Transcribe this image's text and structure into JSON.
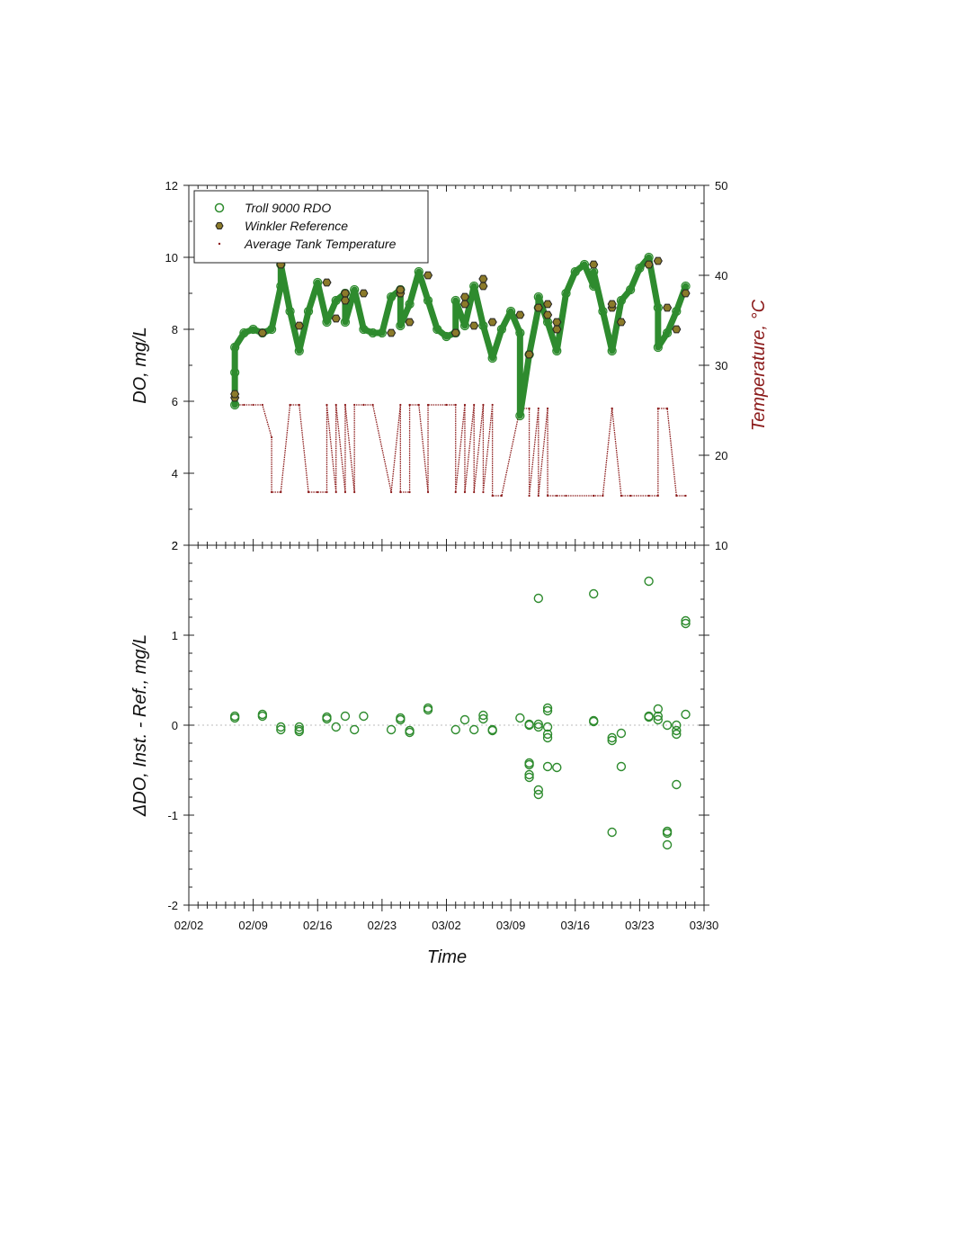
{
  "chart_data": [
    {
      "type": "line",
      "panel": "top",
      "ylabel": "DO, mg/L",
      "y2label": "Temperature, °C",
      "ylim": [
        2,
        12
      ],
      "y2lim": [
        10,
        50
      ],
      "xlim": [
        "02/02",
        "03/30"
      ],
      "yticks": [
        "2",
        "4",
        "6",
        "8",
        "10",
        "12"
      ],
      "y2ticks": [
        "10",
        "20",
        "30",
        "40",
        "50"
      ],
      "legend": {
        "placement": "top-left",
        "entries": [
          "Troll 9000 RDO",
          "Winkler Reference",
          "Average Tank Temperature"
        ]
      },
      "colors": {
        "troll": "#2e8b2e",
        "winkler": "#8b7a2a",
        "temperature": "#8b1a1a",
        "y2_axis_label": "#8b1a1a"
      },
      "series": [
        {
          "name": "Troll 9000 RDO",
          "style": "open circles",
          "x": [
            "02/07",
            "02/07",
            "02/07",
            "02/08",
            "02/09",
            "02/10",
            "02/11",
            "02/12",
            "02/12",
            "02/13",
            "02/14",
            "02/15",
            "02/16",
            "02/17",
            "02/18",
            "02/19",
            "02/19",
            "02/20",
            "02/21",
            "02/22",
            "02/23",
            "02/24",
            "02/25",
            "02/25",
            "02/26",
            "02/27",
            "02/28",
            "03/01",
            "03/02",
            "03/03",
            "03/03",
            "03/04",
            "03/05",
            "03/06",
            "03/07",
            "03/08",
            "03/09",
            "03/10",
            "03/10",
            "03/11",
            "03/12",
            "03/12",
            "03/13",
            "03/14",
            "03/15",
            "03/16",
            "03/17",
            "03/18",
            "03/18",
            "03/19",
            "03/20",
            "03/21",
            "03/22",
            "03/23",
            "03/24",
            "03/25",
            "03/25",
            "03/26",
            "03/27",
            "03/28"
          ],
          "y": [
            5.9,
            6.8,
            7.5,
            7.9,
            8.0,
            7.9,
            8.0,
            9.2,
            9.8,
            8.5,
            7.4,
            8.5,
            9.3,
            8.2,
            8.8,
            9.0,
            8.2,
            9.1,
            8.0,
            7.9,
            7.9,
            8.9,
            9.1,
            8.1,
            8.7,
            9.6,
            8.8,
            8.0,
            7.8,
            7.9,
            8.8,
            8.1,
            9.2,
            8.1,
            7.2,
            8.0,
            8.5,
            7.9,
            5.6,
            7.3,
            8.6,
            8.9,
            8.2,
            7.4,
            9.0,
            9.6,
            9.8,
            9.2,
            9.6,
            8.5,
            7.4,
            8.8,
            9.1,
            9.7,
            10.0,
            8.6,
            7.5,
            7.9,
            8.5,
            9.2
          ]
        },
        {
          "name": "Winkler Reference",
          "style": "filled hexagons",
          "x": [
            "02/07",
            "02/07",
            "02/10",
            "02/12",
            "02/14",
            "02/17",
            "02/18",
            "02/19",
            "02/19",
            "02/21",
            "02/24",
            "02/25",
            "02/25",
            "02/26",
            "02/28",
            "03/03",
            "03/04",
            "03/04",
            "03/05",
            "03/06",
            "03/06",
            "03/07",
            "03/10",
            "03/11",
            "03/12",
            "03/13",
            "03/13",
            "03/14",
            "03/14",
            "03/18",
            "03/20",
            "03/20",
            "03/21",
            "03/24",
            "03/25",
            "03/26",
            "03/27",
            "03/28"
          ],
          "y": [
            6.1,
            6.2,
            7.9,
            9.8,
            8.1,
            9.3,
            8.3,
            8.8,
            9.0,
            9.0,
            7.9,
            9.0,
            9.1,
            8.2,
            9.5,
            7.9,
            8.7,
            8.9,
            8.1,
            9.2,
            9.4,
            8.2,
            8.4,
            7.3,
            8.6,
            8.7,
            8.4,
            8.2,
            8.0,
            9.8,
            8.6,
            8.7,
            8.2,
            9.8,
            9.9,
            8.6,
            8.0,
            9.0
          ]
        },
        {
          "name": "Average Tank Temperature",
          "axis": "right",
          "style": "small dots",
          "x": [
            "02/07",
            "02/08",
            "02/09",
            "02/10",
            "02/11",
            "02/11",
            "02/12",
            "02/13",
            "02/14",
            "02/15",
            "02/16",
            "02/17",
            "02/17",
            "02/18",
            "02/18",
            "02/19",
            "02/19",
            "02/20",
            "02/20",
            "02/21",
            "02/21",
            "02/22",
            "02/24",
            "02/25",
            "02/25",
            "02/26",
            "02/26",
            "02/27",
            "02/28",
            "02/28",
            "03/02",
            "03/03",
            "03/03",
            "03/04",
            "03/04",
            "03/05",
            "03/05",
            "03/06",
            "03/06",
            "03/07",
            "03/07",
            "03/08",
            "03/10",
            "03/10",
            "03/11",
            "03/11",
            "03/12",
            "03/12",
            "03/13",
            "03/13",
            "03/14",
            "03/15",
            "03/18",
            "03/18",
            "03/19",
            "03/20",
            "03/20",
            "03/21",
            "03/21",
            "03/22",
            "03/24",
            "03/25",
            "03/25",
            "03/26",
            "03/27",
            "03/28"
          ],
          "y": [
            25.6,
            25.6,
            25.6,
            25.6,
            22,
            15.9,
            15.9,
            25.6,
            25.6,
            15.9,
            15.9,
            15.9,
            25.6,
            15.9,
            25.6,
            15.9,
            25.6,
            15.9,
            25.6,
            25.6,
            25.6,
            25.6,
            15.9,
            25.6,
            15.9,
            15.9,
            25.6,
            25.6,
            15.9,
            25.6,
            25.6,
            25.6,
            15.9,
            25.6,
            15.9,
            25.6,
            15.9,
            25.6,
            15.9,
            25.6,
            15.5,
            15.5,
            25.2,
            25.2,
            25.2,
            15.5,
            25.2,
            15.5,
            25.2,
            15.5,
            15.5,
            15.5,
            15.5,
            15.5,
            15.5,
            25.2,
            25.2,
            15.5,
            15.5,
            15.5,
            15.5,
            15.5,
            25.2,
            25.2,
            15.5,
            15.5
          ]
        }
      ]
    },
    {
      "type": "scatter",
      "panel": "bottom",
      "xlabel": "Time",
      "ylabel": "ΔDO, Inst. - Ref., mg/L",
      "ylim": [
        -2,
        2
      ],
      "xlim": [
        "02/02",
        "03/30"
      ],
      "yticks": [
        "-2",
        "-1",
        "0",
        "1",
        "2"
      ],
      "xticks": [
        "02/02",
        "02/09",
        "02/16",
        "02/23",
        "03/02",
        "03/09",
        "03/16",
        "03/23",
        "03/30"
      ],
      "zero_line": "dotted",
      "colors": {
        "points": "#2e8b2e",
        "zero_line": "#bbbbbb"
      },
      "series": [
        {
          "name": "ΔDO",
          "x": [
            "02/07",
            "02/07",
            "02/10",
            "02/10",
            "02/12",
            "02/12",
            "02/14",
            "02/14",
            "02/14",
            "02/17",
            "02/17",
            "02/18",
            "02/19",
            "02/20",
            "02/21",
            "02/24",
            "02/25",
            "02/25",
            "02/26",
            "02/26",
            "02/28",
            "02/28",
            "03/03",
            "03/04",
            "03/05",
            "03/06",
            "03/06",
            "03/07",
            "03/07",
            "03/10",
            "03/11",
            "03/11",
            "03/11",
            "03/11",
            "03/11",
            "03/11",
            "03/12",
            "03/12",
            "03/12",
            "03/12",
            "03/12",
            "03/13",
            "03/13",
            "03/13",
            "03/13",
            "03/13",
            "03/13",
            "03/14",
            "03/18",
            "03/18",
            "03/18",
            "03/20",
            "03/20",
            "03/20",
            "03/21",
            "03/21",
            "03/24",
            "03/24",
            "03/24",
            "03/25",
            "03/25",
            "03/25",
            "03/26",
            "03/26",
            "03/26",
            "03/26",
            "03/27",
            "03/27",
            "03/27",
            "03/27",
            "03/28",
            "03/28",
            "03/28"
          ],
          "y": [
            0.1,
            0.08,
            0.12,
            0.1,
            -0.02,
            -0.05,
            -0.02,
            -0.05,
            -0.07,
            0.09,
            0.07,
            -0.02,
            0.1,
            -0.05,
            0.1,
            -0.05,
            0.08,
            0.06,
            -0.06,
            -0.08,
            0.19,
            0.17,
            -0.05,
            0.06,
            -0.05,
            0.11,
            0.07,
            -0.05,
            -0.06,
            0.08,
            -0.42,
            -0.44,
            -0.55,
            -0.58,
            0.0,
            0.01,
            -0.72,
            -0.77,
            0.01,
            -0.02,
            1.41,
            0.19,
            0.16,
            -0.02,
            -0.1,
            -0.14,
            -0.46,
            -0.47,
            1.46,
            0.05,
            0.04,
            -1.19,
            -0.14,
            -0.17,
            -0.09,
            -0.46,
            1.6,
            0.1,
            0.09,
            0.18,
            0.1,
            0.06,
            -1.18,
            -1.2,
            -1.33,
            0.0,
            -0.06,
            -0.1,
            -0.66,
            0.0,
            1.16,
            1.13,
            0.12
          ]
        }
      ]
    }
  ]
}
